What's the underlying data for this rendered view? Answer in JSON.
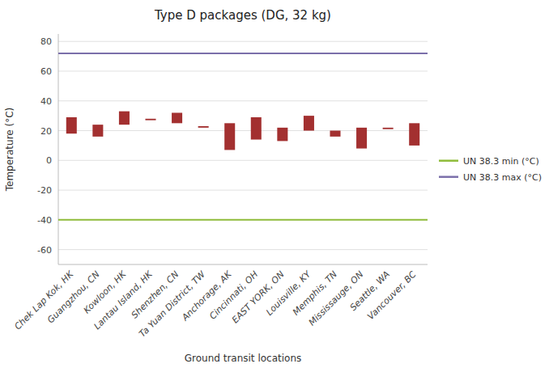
{
  "chart_data": {
    "type": "bar",
    "title": "Type D packages (DG, 32 kg)",
    "x_label": "Ground transit locations",
    "y_label": "Temperature (°C)",
    "categories": [
      "Chek Lap Kok, HK",
      "Guangzhou, CN",
      "Kowloon, HK",
      "Lantau Island, HK",
      "Shenzhen, CN",
      "Ta Yuan District, TW",
      "Anchorage, AK",
      "Cincinnati, OH",
      "EAST YORK, ON",
      "Louisville, KY",
      "Memphis, TN",
      "Mississauge, ON",
      "Seattle, WA",
      "Vancouver, BC"
    ],
    "low": [
      18,
      16,
      24,
      27,
      25,
      22,
      7,
      14,
      13,
      20,
      16,
      8,
      21,
      10
    ],
    "high": [
      29,
      24,
      33,
      28,
      32,
      23,
      25,
      29,
      22,
      30,
      20,
      22,
      22,
      25
    ],
    "color": "#a33030",
    "lines": [
      {
        "name": "UN 38.3 min (°C)",
        "value": -40,
        "color": "#8fbc3a"
      },
      {
        "name": "UN 38.3 max (°C)",
        "value": 72,
        "color": "#7b6faa"
      }
    ],
    "ylim": [
      -70,
      85
    ],
    "yticks": [
      -60,
      -40,
      -20,
      0,
      20,
      40,
      60,
      80
    ],
    "grid": true,
    "legend": "right"
  }
}
